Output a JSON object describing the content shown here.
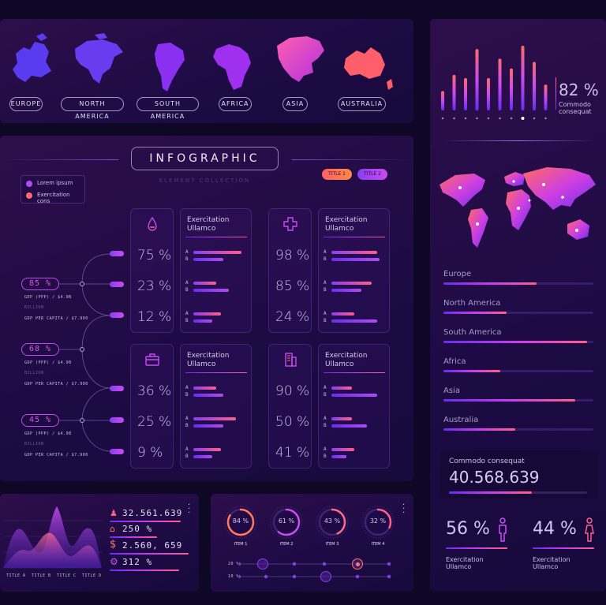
{
  "continents": {
    "labels": [
      "EUROPE",
      "NORTH AMERICA",
      "SOUTH AMERICA",
      "AFRICA",
      "ASIA",
      "AUSTRALIA"
    ],
    "colors": [
      "#5a3cf0",
      "#6a3cf0",
      "#8a30f0",
      "#a030f0",
      "#e040c0",
      "#ff5f6a"
    ]
  },
  "top_stat": {
    "value": "82 %",
    "label": "Commodo\nconsequat"
  },
  "top_bars": {
    "values": [
      0.3,
      0.55,
      0.5,
      0.95,
      0.5,
      0.8,
      0.65,
      1.0,
      0.75,
      0.4,
      0.52
    ],
    "active_index": 7
  },
  "infographic": {
    "title": "INFOGRAPHIC",
    "subtitle": "ELEMENT COLLECTION",
    "legend": [
      "Lorem ipsum",
      "Exercitation cons"
    ],
    "tags": [
      "TITLE 1",
      "TITLE 2"
    ]
  },
  "left_stats": [
    {
      "value": "85 %",
      "line1": "GDP (PPP) / $4.9B",
      "line2": "BILLION",
      "line3": "GDP PER CAPITA / $7.900"
    },
    {
      "value": "68 %",
      "line1": "GDP (PPP) / $4.9B",
      "line2": "BILLION",
      "line3": "GDP PER CAPITA / $7.900"
    },
    {
      "value": "45 %",
      "line1": "GDP (PPP) / $4.9B",
      "line2": "BILLION",
      "line3": "GDP PER CAPITA / $7.900"
    }
  ],
  "blocks": [
    {
      "icon": "drop-icon",
      "title": "Exercitation\nUllamco",
      "percents": [
        "75 %",
        "23 %",
        "12 %"
      ],
      "ab": [
        [
          0.95,
          0.6
        ],
        [
          0.45,
          0.7
        ],
        [
          0.55,
          0.38
        ]
      ]
    },
    {
      "icon": "plus-icon",
      "title": "Exercitation\nUllamco",
      "percents": [
        "98 %",
        "85 %",
        "24 %"
      ],
      "ab": [
        [
          0.9,
          0.95
        ],
        [
          0.8,
          0.6
        ],
        [
          0.45,
          0.9
        ]
      ]
    },
    {
      "icon": "briefcase-icon",
      "title": "Exercitation\nUllamco",
      "percents": [
        "36 %",
        "25 %",
        "9 %"
      ],
      "ab": [
        [
          0.45,
          0.6
        ],
        [
          0.85,
          0.6
        ],
        [
          0.55,
          0.38
        ]
      ]
    },
    {
      "icon": "building-icon",
      "title": "Exercitation\nUllamco",
      "percents": [
        "90 %",
        "50 %",
        "41 %"
      ],
      "ab": [
        [
          0.4,
          0.9
        ],
        [
          0.4,
          0.7
        ],
        [
          0.45,
          0.3
        ]
      ]
    }
  ],
  "regions": [
    {
      "name": "Europe",
      "value": 0.62
    },
    {
      "name": "North America",
      "value": 0.42
    },
    {
      "name": "South America",
      "value": 0.96
    },
    {
      "name": "Africa",
      "value": 0.38
    },
    {
      "name": "Asia",
      "value": 0.88
    },
    {
      "name": "Australia",
      "value": 0.48
    }
  ],
  "commodo": {
    "label": "Commodo consequat",
    "value": "40.568.639"
  },
  "gender": [
    {
      "value": "56 %",
      "label": "Exercitation\nUllamco"
    },
    {
      "value": "44 %",
      "label": "Exercitation\nUllamco"
    }
  ],
  "area_chart": {
    "titles": [
      "TITLE A",
      "TITLE B",
      "TITLE C",
      "TITLE D"
    ],
    "stats": [
      {
        "icon": "people-icon",
        "value": "32.561.639"
      },
      {
        "icon": "house-icon",
        "value": "250 %"
      },
      {
        "icon": "dollar-icon",
        "value": "2.560, 659"
      },
      {
        "icon": "gear-icon",
        "value": "312 %"
      }
    ]
  },
  "gauges": {
    "items": [
      {
        "value": "84 %",
        "label": "ITEM 1"
      },
      {
        "value": "61 %",
        "label": "ITEM 2"
      },
      {
        "value": "43 %",
        "label": "ITEM 3"
      },
      {
        "value": "32 %",
        "label": "ITEM 4"
      }
    ],
    "slider_labels": [
      "20 %",
      "10 %"
    ]
  }
}
